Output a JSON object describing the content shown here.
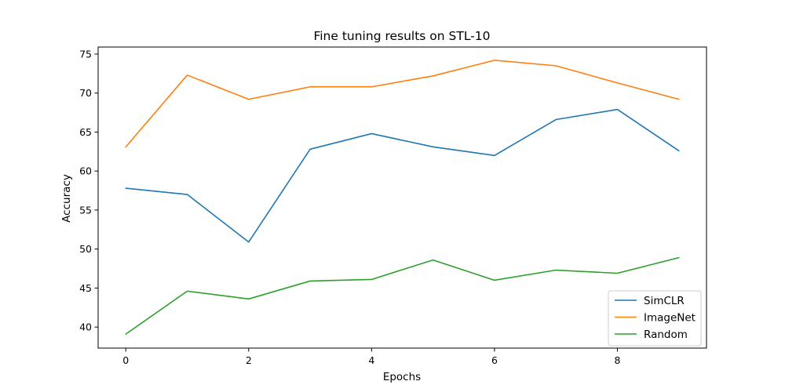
{
  "chart_data": {
    "type": "line",
    "title": "Fine tuning results on STL-10",
    "xlabel": "Epochs",
    "ylabel": "Accuracy",
    "x": [
      0,
      1,
      2,
      3,
      4,
      5,
      6,
      7,
      8,
      9
    ],
    "xlim": [
      -0.45,
      9.45
    ],
    "ylim": [
      37.3,
      75.9
    ],
    "xticks": [
      0,
      2,
      4,
      6,
      8
    ],
    "yticks": [
      40,
      45,
      50,
      55,
      60,
      65,
      70,
      75
    ],
    "grid": false,
    "legend_position": "lower-right",
    "series": [
      {
        "name": "SimCLR",
        "color": "#1f77b4",
        "values": [
          57.8,
          57.0,
          50.9,
          62.8,
          64.8,
          63.1,
          62.0,
          66.6,
          67.9,
          62.6
        ]
      },
      {
        "name": "ImageNet",
        "color": "#ff7f0e",
        "values": [
          63.1,
          72.3,
          69.2,
          70.8,
          70.8,
          72.2,
          74.2,
          73.5,
          71.3,
          69.2
        ]
      },
      {
        "name": "Random",
        "color": "#2ca02c",
        "values": [
          39.1,
          44.6,
          43.6,
          45.9,
          46.1,
          48.6,
          46.0,
          47.3,
          46.9,
          48.9
        ]
      }
    ]
  }
}
